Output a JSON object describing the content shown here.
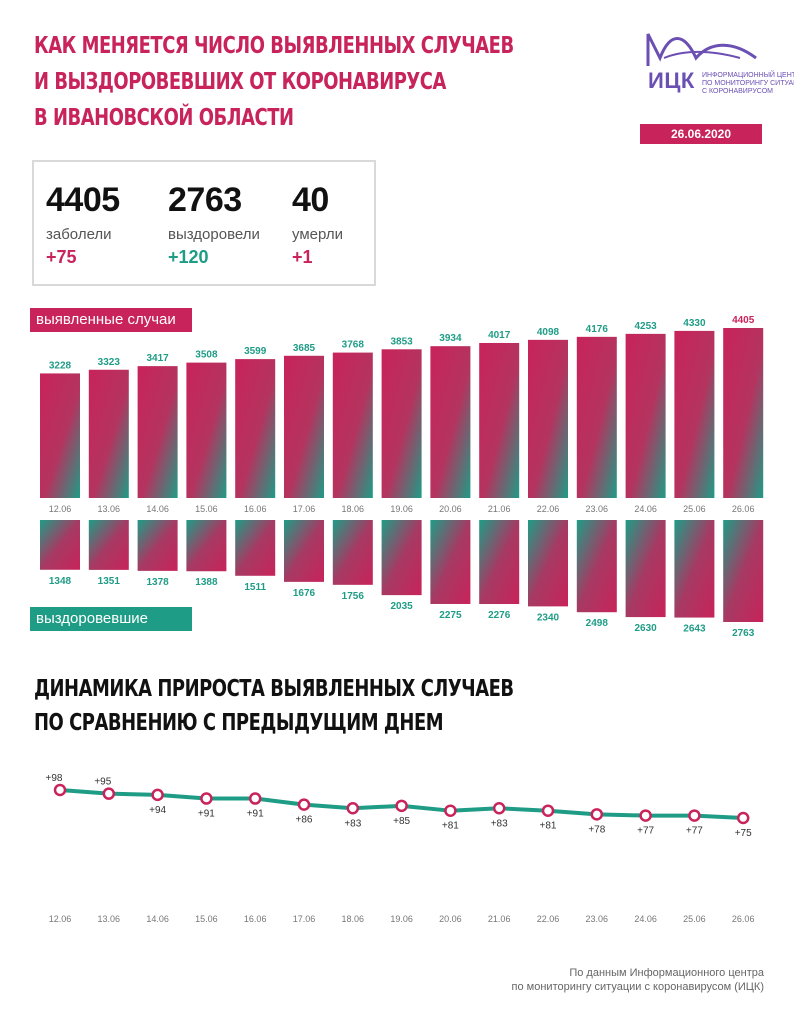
{
  "header": {
    "title_lines": [
      "КАК МЕНЯЕТСЯ ЧИСЛО ВЫЯВЛЕННЫХ СЛУЧАЕВ",
      "И ВЫЗДОРОВЕВШИХ ОТ КОРОНАВИРУСА",
      "В ИВАНОВСКОЙ ОБЛАСТИ"
    ]
  },
  "logo": {
    "name": "ИЦК",
    "subtitle_lines": [
      "Информационный центр",
      "по мониторингу ситуации",
      "с коронавирусом"
    ],
    "date": "26.06.2020",
    "color": "#6b4fb3"
  },
  "summary": [
    {
      "value": "4405",
      "label": "заболели",
      "delta": "+75",
      "tone": "red"
    },
    {
      "value": "2763",
      "label": "выздоровели",
      "delta": "+120",
      "tone": "green"
    },
    {
      "value": "40",
      "label": "умерли",
      "delta": "+1",
      "tone": "red"
    }
  ],
  "colors": {
    "accent_red": "#c8235a",
    "accent_green": "#1f9c86"
  },
  "subtitle_lines": [
    "ДИНАМИКА ПРИРОСТА ВЫЯВЛЕННЫХ СЛУЧАЕВ",
    "ПО СРАВНЕНИЮ С ПРЕДЫДУЩИМ ДНЕМ"
  ],
  "footer_lines": [
    "По данным Информационного центра",
    "по мониторингу ситуации с коронавирусом (ИЦК)"
  ],
  "chart_data": [
    {
      "type": "bar",
      "categories": [
        "12.06",
        "13.06",
        "14.06",
        "15.06",
        "16.06",
        "17.06",
        "18.06",
        "19.06",
        "20.06",
        "21.06",
        "22.06",
        "23.06",
        "24.06",
        "25.06",
        "26.06"
      ],
      "series": [
        {
          "name": "выявленные случаи",
          "values": [
            3228,
            3323,
            3417,
            3508,
            3599,
            3685,
            3768,
            3853,
            3934,
            4017,
            4098,
            4176,
            4253,
            4330,
            4405
          ]
        },
        {
          "name": "выздоровевшие",
          "values": [
            1348,
            1351,
            1378,
            1388,
            1511,
            1676,
            1756,
            2035,
            2275,
            2276,
            2340,
            2498,
            2630,
            2643,
            2763
          ]
        }
      ],
      "legend_position": "left"
    },
    {
      "type": "line",
      "categories": [
        "12.06",
        "13.06",
        "14.06",
        "15.06",
        "16.06",
        "17.06",
        "18.06",
        "19.06",
        "20.06",
        "21.06",
        "22.06",
        "23.06",
        "24.06",
        "25.06",
        "26.06"
      ],
      "values": [
        98,
        95,
        94,
        91,
        91,
        86,
        83,
        85,
        81,
        83,
        81,
        78,
        77,
        77,
        75
      ],
      "labels": [
        "+98",
        "+95",
        "+94",
        "+91",
        "+91",
        "+86",
        "+83",
        "+85",
        "+81",
        "+83",
        "+81",
        "+78",
        "+77",
        "+77",
        "+75"
      ],
      "grid": false
    }
  ]
}
